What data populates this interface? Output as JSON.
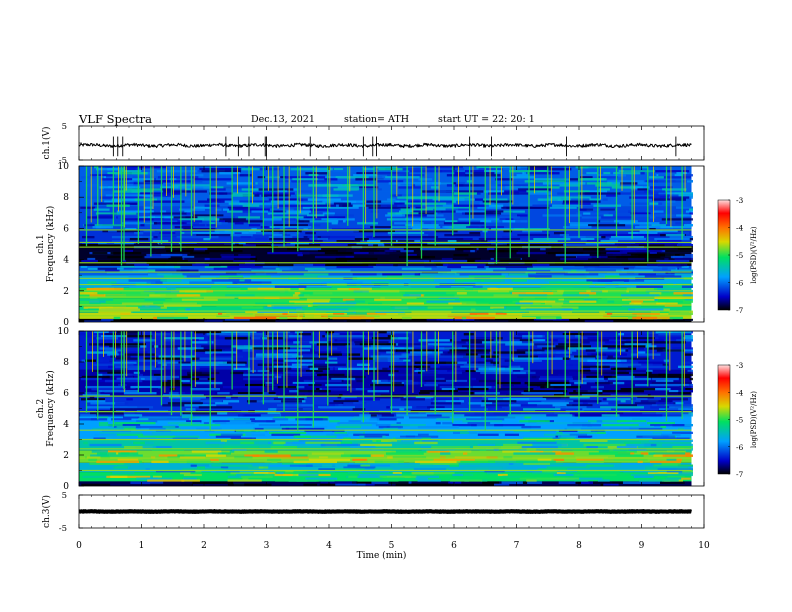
{
  "header": {
    "title": "VLF  Spectra",
    "date": "Dec.13, 2021",
    "station": "station= ATH",
    "start_ut": "start  UT  =    22: 20: 1"
  },
  "colors": {
    "spectrogram_background": "#00004a",
    "wave_line": "#000000",
    "colorbar_stops": [
      "#000000",
      "#0000c8",
      "#00a0ff",
      "#00e060",
      "#d8d800",
      "#ff7000",
      "#ff0000",
      "#ffe0e0"
    ]
  },
  "chart_data": [
    {
      "type": "line",
      "panel": "ch1-waveform",
      "ylabel": "ch.1(V)",
      "ylim": [
        -5,
        5
      ],
      "yticks": [
        "5",
        "-5"
      ],
      "xlim": [
        0,
        10
      ],
      "baseline": -0.7,
      "noise_amplitude": 0.8,
      "spike_times": [
        0.55,
        0.62,
        0.7,
        2.35,
        2.55,
        2.72,
        2.98,
        3.0,
        3.7,
        4.55,
        4.7,
        4.76,
        6.25,
        6.6,
        7.8,
        9.55
      ]
    },
    {
      "type": "heatmap",
      "panel": "ch1-spectrogram",
      "ylabel": "ch.1\nFrequency (kHz)",
      "ylim": [
        0,
        10
      ],
      "yticks": [
        "0",
        "2",
        "4",
        "6",
        "8",
        "10"
      ],
      "xlim": [
        0,
        9.8
      ],
      "zlim": [
        -7,
        -3
      ],
      "colorbar_label": "log(PSD)(V²/Hz)",
      "colorbar_ticks": [
        "-3",
        "-4",
        "-5",
        "-6",
        "-7"
      ],
      "bands": [
        {
          "from": 0,
          "to": 0.2,
          "level": -7.0
        },
        {
          "from": 0.2,
          "to": 0.6,
          "level": -4.6
        },
        {
          "from": 0.6,
          "to": 1.0,
          "level": -5.2
        },
        {
          "from": 1.0,
          "to": 1.5,
          "level": -5.0
        },
        {
          "from": 1.5,
          "to": 2.2,
          "level": -5.0
        },
        {
          "from": 2.2,
          "to": 3.0,
          "level": -5.7
        },
        {
          "from": 3.0,
          "to": 3.6,
          "level": -6.1
        },
        {
          "from": 3.6,
          "to": 5.0,
          "level": -6.9
        },
        {
          "from": 5.0,
          "to": 5.9,
          "level": -6.3
        },
        {
          "from": 5.9,
          "to": 7.4,
          "level": -6.2
        },
        {
          "from": 7.4,
          "to": 10.0,
          "level": -6.1
        }
      ],
      "lines_khz": [
        0.4,
        0.7,
        1.1,
        1.6,
        2.0,
        2.4,
        2.8,
        3.2,
        3.8,
        4.8,
        5.1,
        5.9
      ],
      "sferic_times": [
        0.12,
        0.3,
        0.55,
        0.68,
        0.72,
        0.95,
        1.15,
        1.32,
        1.48,
        1.63,
        1.8,
        2.1,
        2.45,
        2.72,
        2.95,
        3.1,
        3.28,
        3.5,
        3.75,
        3.98,
        4.3,
        4.55,
        4.72,
        5.0,
        5.25,
        5.48,
        5.7,
        5.98,
        6.25,
        6.5,
        6.68,
        6.9,
        7.2,
        7.5,
        7.78,
        8.0,
        8.3,
        8.6,
        8.85,
        9.1,
        9.4,
        9.65
      ]
    },
    {
      "type": "heatmap",
      "panel": "ch2-spectrogram",
      "ylabel": "ch.2\nFrequency (kHz)",
      "ylim": [
        0,
        10
      ],
      "yticks": [
        "0",
        "2",
        "4",
        "6",
        "8",
        "10"
      ],
      "xlim": [
        0,
        9.8
      ],
      "zlim": [
        -7,
        -3
      ],
      "colorbar_label": "log(PSD)(V²/Hz)",
      "colorbar_ticks": [
        "-3",
        "-4",
        "-5",
        "-6",
        "-7"
      ],
      "bands": [
        {
          "from": 0,
          "to": 0.3,
          "level": -6.8
        },
        {
          "from": 0.3,
          "to": 0.9,
          "level": -5.1
        },
        {
          "from": 0.9,
          "to": 1.5,
          "level": -5.6
        },
        {
          "from": 1.5,
          "to": 2.3,
          "level": -4.8
        },
        {
          "from": 2.3,
          "to": 3.0,
          "level": -5.4
        },
        {
          "from": 3.0,
          "to": 4.5,
          "level": -5.8
        },
        {
          "from": 4.5,
          "to": 5.8,
          "level": -6.3
        },
        {
          "from": 5.8,
          "to": 7.5,
          "level": -6.6
        },
        {
          "from": 7.5,
          "to": 10.0,
          "level": -6.4
        }
      ],
      "lines_khz": [
        1.0,
        1.8,
        2.4,
        3.0,
        3.6,
        4.8,
        5.8
      ],
      "sferic_times": [
        0.12,
        0.3,
        0.55,
        0.68,
        0.72,
        0.95,
        1.15,
        1.32,
        1.48,
        1.63,
        1.8,
        2.1,
        2.45,
        2.72,
        2.95,
        3.1,
        3.28,
        3.5,
        3.75,
        3.98,
        4.3,
        4.55,
        4.72,
        5.0,
        5.25,
        5.48,
        5.7,
        5.98,
        6.25,
        6.5,
        6.68,
        6.9,
        7.2,
        7.5,
        7.78,
        8.0,
        8.3,
        8.6,
        8.85,
        9.1,
        9.4,
        9.65
      ]
    },
    {
      "type": "line",
      "panel": "ch3-waveform",
      "ylabel": "ch.3(V)",
      "ylim": [
        -5,
        5
      ],
      "yticks": [
        "5",
        "-5"
      ],
      "xlim": [
        0,
        10
      ],
      "baseline": 0.0,
      "noise_amplitude": 0.15,
      "xlabel": "Time  (min)",
      "xticks": [
        "0",
        "1",
        "2",
        "3",
        "4",
        "5",
        "6",
        "7",
        "8",
        "9",
        "10"
      ]
    }
  ]
}
